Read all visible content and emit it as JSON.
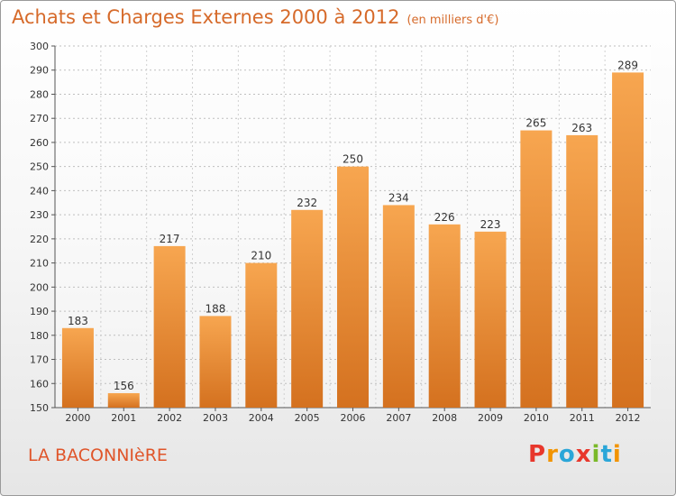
{
  "header": {
    "title": "Achats et Charges Externes 2000 à 2012",
    "unit": "(en milliers d'€)"
  },
  "footer": {
    "city": "LA BACONNIèRE",
    "logo": "Proxiti",
    "logo_colors": [
      "#e8372c",
      "#f29400",
      "#2aa6d8",
      "#e8372c",
      "#7ab929",
      "#2aa6d8",
      "#f29400"
    ]
  },
  "colors": {
    "bar_top": "#f7a650",
    "bar_bottom": "#d4711f",
    "text": "#333333",
    "title": "#d66a2a",
    "city": "#e0552a"
  },
  "chart_data": {
    "type": "bar",
    "title": "Achats et Charges Externes 2000 à 2012",
    "xlabel": "",
    "ylabel": "",
    "ylim": [
      150,
      300
    ],
    "yticks": [
      150,
      160,
      170,
      180,
      190,
      200,
      210,
      220,
      230,
      240,
      250,
      260,
      270,
      280,
      290,
      300
    ],
    "grid": true,
    "categories": [
      "2000",
      "2001",
      "2002",
      "2003",
      "2004",
      "2005",
      "2006",
      "2007",
      "2008",
      "2009",
      "2010",
      "2011",
      "2012"
    ],
    "values": [
      183,
      156,
      217,
      188,
      210,
      232,
      250,
      234,
      226,
      223,
      265,
      263,
      289
    ]
  }
}
